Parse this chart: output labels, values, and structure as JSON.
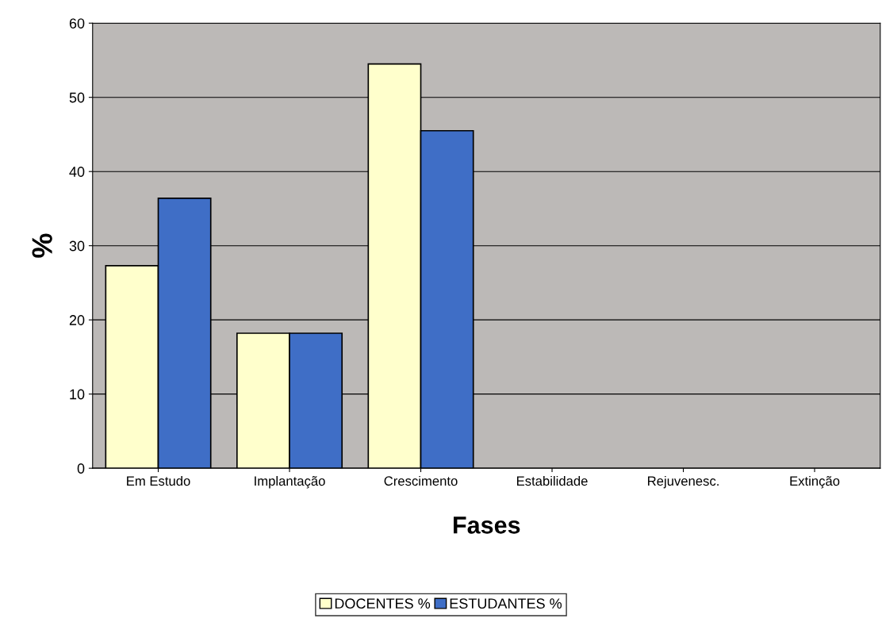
{
  "chart_data": {
    "type": "bar",
    "xlabel": "Fases",
    "ylabel": "%",
    "categories": [
      "Em Estudo",
      "Implantação",
      "Crescimento",
      "Estabilidade",
      "Rejuvenesc.",
      "Extinção"
    ],
    "series": [
      {
        "name": "DOCENTES %",
        "color": "#ffffcc",
        "values": [
          27.3,
          18.2,
          54.5,
          null,
          null,
          null
        ]
      },
      {
        "name": "ESTUDANTES %",
        "color": "#3f6ec6",
        "values": [
          36.4,
          18.2,
          45.5,
          null,
          null,
          null
        ]
      }
    ],
    "ylim": [
      0,
      60
    ],
    "yticks": [
      0,
      10,
      20,
      30,
      40,
      50,
      60
    ],
    "grid": "y",
    "legend": "bottom"
  }
}
